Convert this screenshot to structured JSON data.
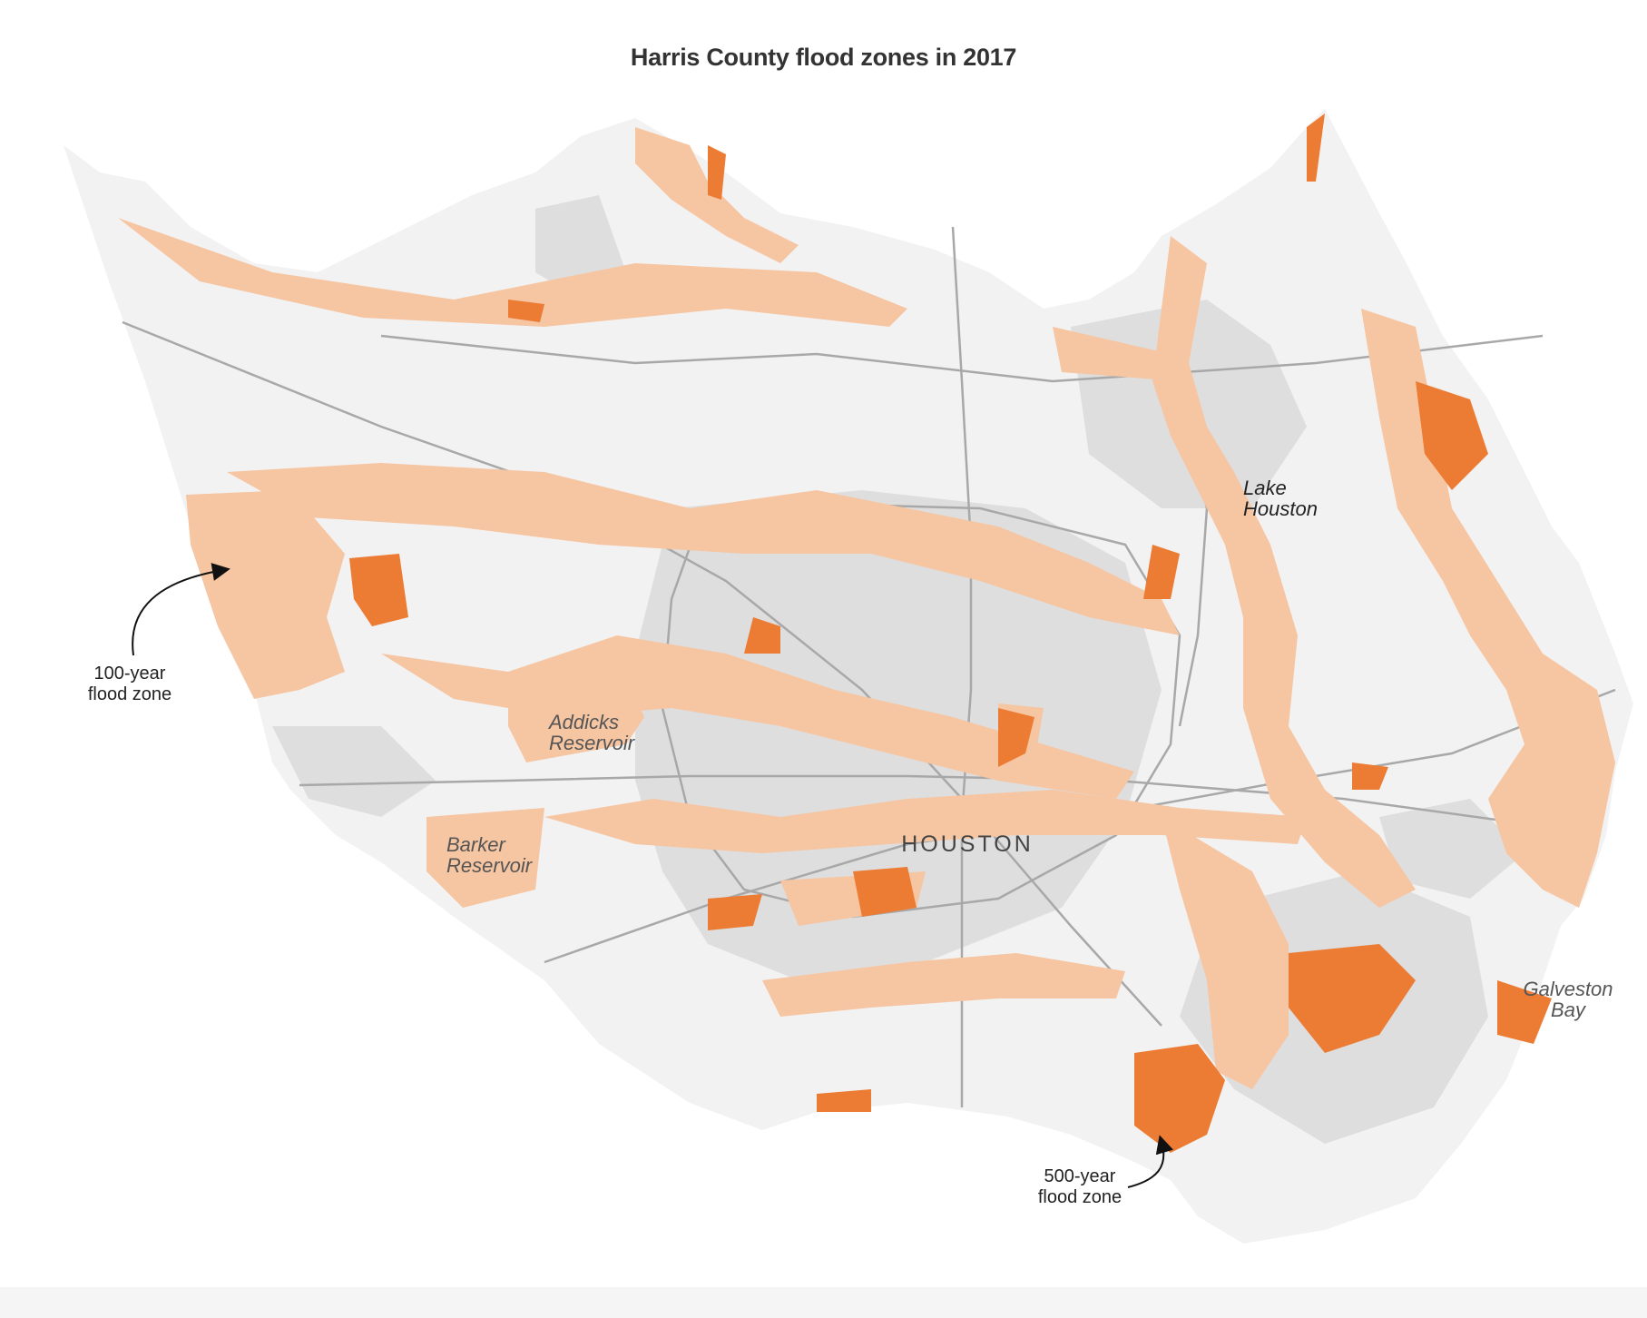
{
  "title": "Harris County flood zones in 2017",
  "colors": {
    "county_fill": "#f2f2f3",
    "urban_fill": "#dedede",
    "zone_100_year": "#f6c5a2",
    "zone_500_year": "#ec7b33",
    "roads": "#a8a8a8",
    "background": "#ffffff"
  },
  "labels": {
    "addicks_line1": "Addicks",
    "addicks_line2": "Reservoir",
    "barker_line1": "Barker",
    "barker_line2": "Reservoir",
    "lake_line1": "Lake",
    "lake_line2": "Houston",
    "galveston_line1": "Galveston",
    "galveston_line2": "Bay",
    "city": "HOUSTON"
  },
  "annotations": {
    "zone_100_line1": "100-year",
    "zone_100_line2": "flood zone",
    "zone_500_line1": "500-year",
    "zone_500_line2": "flood zone"
  },
  "icons": [
    "arrow-icon"
  ]
}
